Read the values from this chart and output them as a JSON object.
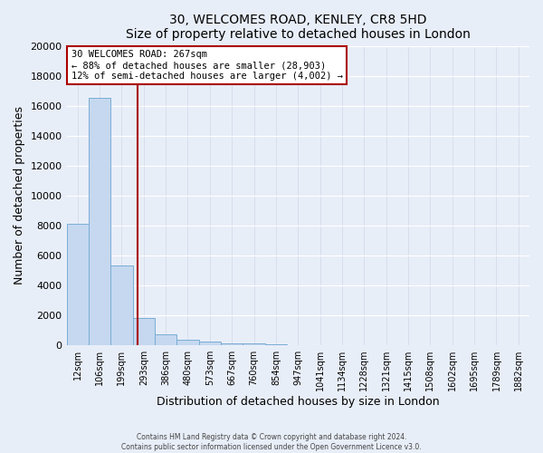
{
  "title": "30, WELCOMES ROAD, KENLEY, CR8 5HD",
  "subtitle": "Size of property relative to detached houses in London",
  "xlabel": "Distribution of detached houses by size in London",
  "ylabel": "Number of detached properties",
  "bar_color": "#c5d8f0",
  "bar_edge_color": "#7aadd4",
  "background_color": "#e8eef8",
  "grid_color": "#d0d8e8",
  "categories": [
    "12sqm",
    "106sqm",
    "199sqm",
    "293sqm",
    "386sqm",
    "480sqm",
    "573sqm",
    "667sqm",
    "760sqm",
    "854sqm",
    "947sqm",
    "1041sqm",
    "1134sqm",
    "1228sqm",
    "1321sqm",
    "1415sqm",
    "1508sqm",
    "1602sqm",
    "1695sqm",
    "1789sqm",
    "1882sqm"
  ],
  "values": [
    8100,
    16500,
    5300,
    1800,
    750,
    350,
    250,
    150,
    100,
    80,
    0,
    0,
    0,
    0,
    0,
    0,
    0,
    0,
    0,
    0,
    0
  ],
  "vline_color": "#aa0000",
  "annotation_title": "30 WELCOMES ROAD: 267sqm",
  "annotation_line1": "← 88% of detached houses are smaller (28,903)",
  "annotation_line2": "12% of semi-detached houses are larger (4,002) →",
  "annotation_box_color": "#ffffff",
  "annotation_box_edge": "#aa0000",
  "ylim": [
    0,
    20000
  ],
  "yticks": [
    0,
    2000,
    4000,
    6000,
    8000,
    10000,
    12000,
    14000,
    16000,
    18000,
    20000
  ],
  "footer1": "Contains HM Land Registry data © Crown copyright and database right 2024.",
  "footer2": "Contains public sector information licensed under the Open Government Licence v3.0."
}
